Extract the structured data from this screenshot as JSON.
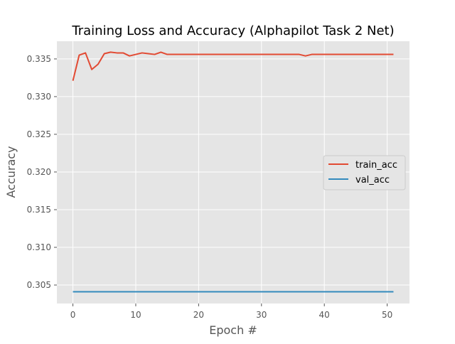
{
  "chart_data": {
    "type": "line",
    "title": "Training Loss and Accuracy (Alphapilot Task 2 Net)",
    "xlabel": "Epoch #",
    "ylabel": "Accuracy",
    "xlim": [
      -2.55,
      53.55
    ],
    "ylim": [
      0.30255,
      0.33735
    ],
    "xticks": [
      0,
      10,
      20,
      30,
      40,
      50
    ],
    "yticks": [
      0.305,
      0.31,
      0.315,
      0.32,
      0.325,
      0.33,
      0.335
    ],
    "ytick_labels": [
      "0.305",
      "0.310",
      "0.315",
      "0.320",
      "0.325",
      "0.330",
      "0.335"
    ],
    "grid": true,
    "legend_position": "center-right",
    "x": [
      0,
      1,
      2,
      3,
      4,
      5,
      6,
      7,
      8,
      9,
      10,
      11,
      12,
      13,
      14,
      15,
      16,
      17,
      18,
      19,
      20,
      21,
      22,
      23,
      24,
      25,
      26,
      27,
      28,
      29,
      30,
      31,
      32,
      33,
      34,
      35,
      36,
      37,
      38,
      39,
      40,
      41,
      42,
      43,
      44,
      45,
      46,
      47,
      48,
      49,
      50,
      51
    ],
    "series": [
      {
        "name": "train_acc",
        "color": "#E24A33",
        "values": [
          0.3321,
          0.3355,
          0.3358,
          0.3336,
          0.3343,
          0.3357,
          0.3359,
          0.3358,
          0.3358,
          0.3354,
          0.3356,
          0.3358,
          0.3357,
          0.3356,
          0.3359,
          0.3356,
          0.3356,
          0.3356,
          0.3356,
          0.3356,
          0.3356,
          0.3356,
          0.3356,
          0.3356,
          0.3356,
          0.3356,
          0.3356,
          0.3356,
          0.3356,
          0.3356,
          0.3356,
          0.3356,
          0.3356,
          0.3356,
          0.3356,
          0.3356,
          0.3356,
          0.3354,
          0.3356,
          0.3356,
          0.3356,
          0.3356,
          0.3356,
          0.3356,
          0.3356,
          0.3356,
          0.3356,
          0.3356,
          0.3356,
          0.3356,
          0.3356,
          0.3356
        ]
      },
      {
        "name": "val_acc",
        "color": "#348ABD",
        "values": [
          0.3041,
          0.3041,
          0.3041,
          0.3041,
          0.3041,
          0.3041,
          0.3041,
          0.3041,
          0.3041,
          0.3041,
          0.3041,
          0.3041,
          0.3041,
          0.3041,
          0.3041,
          0.3041,
          0.3041,
          0.3041,
          0.3041,
          0.3041,
          0.3041,
          0.3041,
          0.3041,
          0.3041,
          0.3041,
          0.3041,
          0.3041,
          0.3041,
          0.3041,
          0.3041,
          0.3041,
          0.3041,
          0.3041,
          0.3041,
          0.3041,
          0.3041,
          0.3041,
          0.3041,
          0.3041,
          0.3041,
          0.3041,
          0.3041,
          0.3041,
          0.3041,
          0.3041,
          0.3041,
          0.3041,
          0.3041,
          0.3041,
          0.3041,
          0.3041,
          0.3041
        ]
      }
    ]
  }
}
